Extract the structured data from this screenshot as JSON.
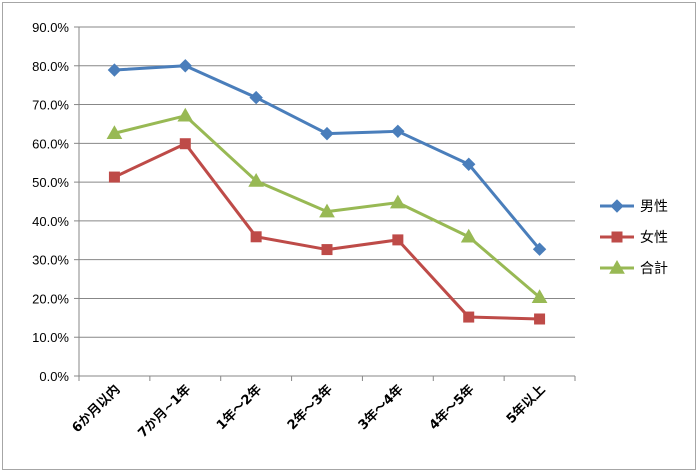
{
  "chart_data": {
    "type": "line",
    "title": "",
    "xlabel": "",
    "ylabel": "",
    "ylim": [
      0,
      90
    ],
    "ytick_step": 10,
    "ytick_labels": [
      "0.0%",
      "10.0%",
      "20.0%",
      "30.0%",
      "40.0%",
      "50.0%",
      "60.0%",
      "70.0%",
      "80.0%",
      "90.0%"
    ],
    "categories": [
      "6か月以内",
      "7か月~1年",
      "1年～2年",
      "2年～3年",
      "3年～4年",
      "4年～5年",
      "5年以上"
    ],
    "grid": true,
    "legend_position": "right",
    "series": [
      {
        "name": "男性",
        "color": "#4a7ebb",
        "marker": "diamond",
        "values": [
          78.9,
          80.0,
          71.8,
          62.5,
          63.1,
          54.6,
          32.7
        ]
      },
      {
        "name": "女性",
        "color": "#be4b48",
        "marker": "square",
        "values": [
          51.3,
          59.9,
          35.9,
          32.6,
          35.1,
          15.2,
          14.7
        ]
      },
      {
        "name": "合計",
        "color": "#98b954",
        "marker": "triangle",
        "values": [
          62.6,
          67.1,
          50.3,
          42.4,
          44.7,
          35.9,
          20.3
        ]
      }
    ]
  }
}
